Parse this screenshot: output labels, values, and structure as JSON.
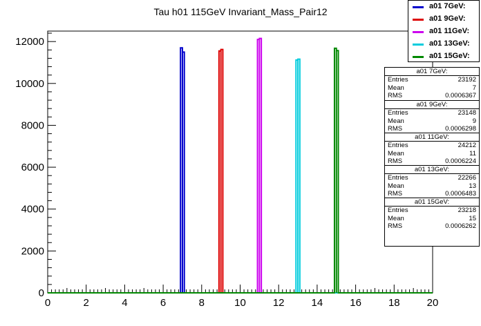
{
  "chart_data": {
    "type": "histogram",
    "title": "Tau h01 115GeV Invariant_Mass_Pair12",
    "xlim": [
      0,
      20
    ],
    "ylim": [
      0,
      12500
    ],
    "x_ticks": [
      0,
      2,
      4,
      6,
      8,
      10,
      12,
      14,
      16,
      18,
      20
    ],
    "y_ticks": [
      0,
      2000,
      4000,
      6000,
      8000,
      10000,
      12000
    ],
    "bin_width": 0.1,
    "legend_position": "top-right",
    "series": [
      {
        "name": "a01 7GeV:",
        "color": "#0000cc",
        "bins": [
          {
            "x": 6.9,
            "y": 11700
          },
          {
            "x": 7.0,
            "y": 11500
          }
        ]
      },
      {
        "name": "a01 9GeV:",
        "color": "#dd0000",
        "bins": [
          {
            "x": 8.9,
            "y": 11550
          },
          {
            "x": 9.0,
            "y": 11620
          }
        ]
      },
      {
        "name": "a01 11GeV:",
        "color": "#cc00ee",
        "bins": [
          {
            "x": 10.9,
            "y": 12100
          },
          {
            "x": 11.0,
            "y": 12150
          }
        ]
      },
      {
        "name": "a01 13GeV:",
        "color": "#00ccdd",
        "bins": [
          {
            "x": 12.9,
            "y": 11120
          },
          {
            "x": 13.0,
            "y": 11160
          }
        ]
      },
      {
        "name": "a01 15GeV:",
        "color": "#008800",
        "bins": [
          {
            "x": 14.9,
            "y": 11680
          },
          {
            "x": 15.0,
            "y": 11570
          }
        ]
      }
    ]
  },
  "stats": [
    {
      "title": "a01 7GeV:",
      "entries": "23192",
      "mean": "7",
      "rms": "0.0006367"
    },
    {
      "title": "a01 9GeV:",
      "entries": "23148",
      "mean": "9",
      "rms": "0.0006298"
    },
    {
      "title": "a01 11GeV:",
      "entries": "24212",
      "mean": "11",
      "rms": "0.0006224"
    },
    {
      "title": "a01 13GeV:",
      "entries": "22266",
      "mean": "13",
      "rms": "0.0006483"
    },
    {
      "title": "a01 15GeV:",
      "entries": "23218",
      "mean": "15",
      "rms": "0.0006262"
    }
  ],
  "stat_labels": {
    "entries": "Entries",
    "mean": "Mean",
    "rms": "RMS"
  }
}
